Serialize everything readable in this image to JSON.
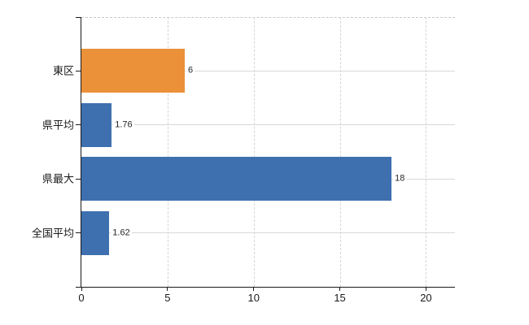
{
  "chart_data": {
    "type": "bar",
    "orientation": "horizontal",
    "title": "",
    "xlabel": "",
    "ylabel": "",
    "categories": [
      "東区",
      "県平均",
      "県最大",
      "全国平均"
    ],
    "values": [
      6,
      1.76,
      18,
      1.62
    ],
    "value_labels": [
      "6",
      "1.76",
      "18",
      "1.62"
    ],
    "bar_color_keys": [
      "highlight",
      "default",
      "default",
      "default"
    ],
    "series_colors": {
      "highlight": "#ea9139",
      "default": "#3e70b0"
    },
    "x_tick_labels": [
      "0",
      "5",
      "10",
      "15",
      "20"
    ],
    "x_tick_values": [
      0,
      5,
      10,
      15,
      20
    ],
    "xlim": [
      0,
      21.68
    ],
    "grid": true,
    "legend": false,
    "colors": {
      "background": "#ffffff",
      "axis": "#1a1a1a",
      "grid_horizontal": "#d5dad5",
      "grid_vertical": "#d4d4d4",
      "plot_border_top": "#c9c9c9",
      "category_text": "#1a1a1a",
      "tick_text": "#1a1a1a",
      "value_text": "#262626"
    }
  }
}
